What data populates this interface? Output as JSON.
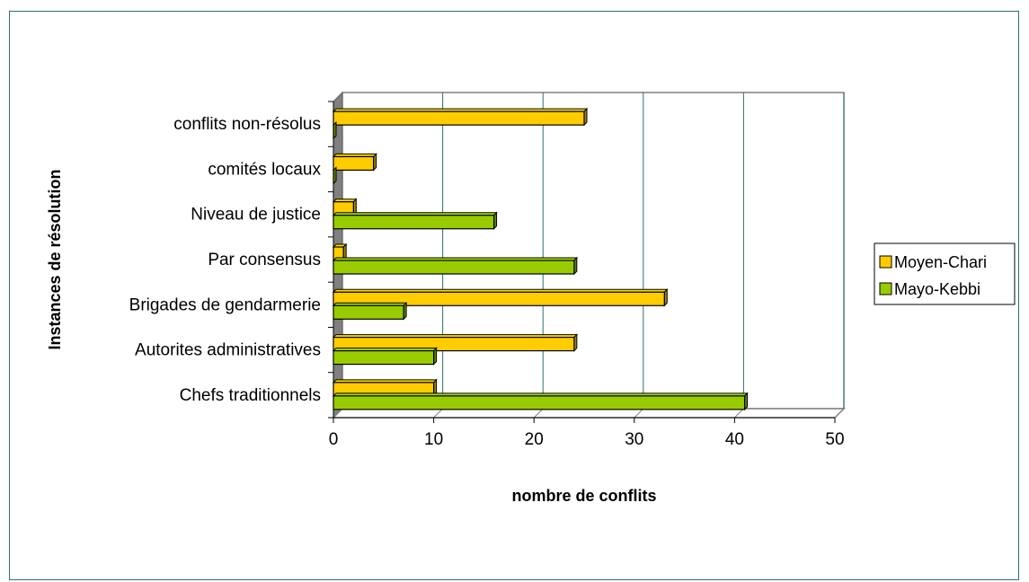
{
  "chart_data": {
    "type": "bar",
    "orientation": "horizontal",
    "categories": [
      "Chefs traditionnels",
      "Autorites administratives",
      "Brigades de gendarmerie",
      "Par consensus",
      "Niveau de justice",
      "comités locaux",
      "conflits non-résolus"
    ],
    "series": [
      {
        "name": "Moyen-Chari",
        "color": "#ffcc00",
        "values": [
          10,
          24,
          33,
          1,
          2,
          4,
          25
        ]
      },
      {
        "name": "Mayo-Kebbi",
        "color": "#99cc00",
        "values": [
          41,
          10,
          7,
          24,
          16,
          0,
          0
        ]
      }
    ],
    "xlabel": "nombre de conflits",
    "ylabel": "Instances de résolution",
    "xlim": [
      0,
      50
    ],
    "xticks": [
      "0",
      "10",
      "20",
      "30",
      "40",
      "50"
    ],
    "grid": "vertical",
    "legend": "right"
  }
}
